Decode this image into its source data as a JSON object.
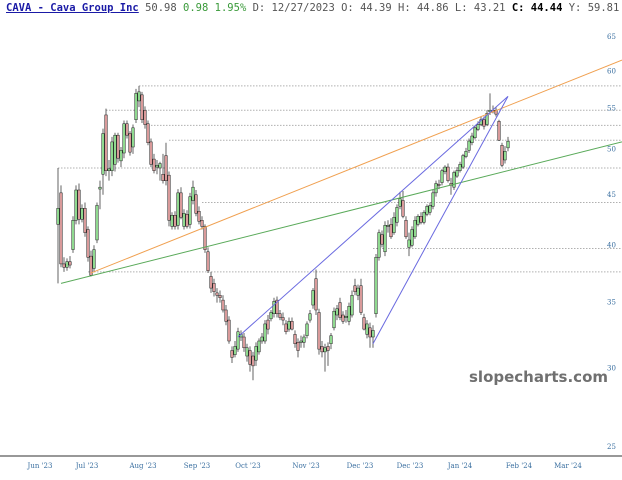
{
  "header": {
    "symbol_label": "CAVA - Cava Group Inc",
    "last": "50.98",
    "change": "0.98",
    "change_pct": "1.95%",
    "date": "D: 12/27/2023",
    "open": "O: 44.39",
    "high": "H: 44.86",
    "low": "L: 43.21",
    "close": "C: 44.44",
    "y_readout": "Y: 59.81"
  },
  "watermark": "slopecharts.com",
  "colors": {
    "up": "#8fd98f",
    "down": "#d99a9a",
    "outline": "#222222",
    "orange": "#f0a050",
    "green_line": "#5aaa5a",
    "blue_line": "#6a6ae0",
    "grid": "#b0b0b0",
    "tick": "#3a6fa0"
  },
  "chart_data": {
    "type": "candlestick",
    "title": "",
    "y_scale": "log",
    "ylim": [
      25,
      65
    ],
    "y_ticks": [
      "25",
      "30",
      "35",
      "40",
      "45",
      "50",
      "55",
      "60",
      "65"
    ],
    "x_ticks": [
      "Jun '23",
      "Jul '23",
      "Aug '23",
      "Sep '23",
      "Oct '23",
      "Nov '23",
      "Dec '23",
      "Dec '23",
      "Jan '24",
      "Feb '24",
      "Mar '24"
    ],
    "grid": false,
    "ohlc": [
      [
        42.0,
        47.9,
        36.6,
        43.6
      ],
      [
        45.2,
        46.0,
        38.0,
        38.3
      ],
      [
        38.3,
        38.9,
        37.6,
        38.0
      ],
      [
        38.0,
        38.8,
        37.7,
        38.5
      ],
      [
        38.5,
        39.0,
        37.9,
        38.2
      ],
      [
        39.6,
        42.8,
        39.3,
        42.4
      ],
      [
        42.4,
        46.0,
        42.0,
        45.5
      ],
      [
        45.5,
        46.2,
        42.0,
        42.5
      ],
      [
        42.5,
        44.0,
        42.2,
        43.6
      ],
      [
        43.6,
        44.2,
        40.8,
        41.2
      ],
      [
        41.5,
        41.8,
        38.5,
        38.9
      ],
      [
        39.0,
        39.5,
        37.2,
        37.3
      ],
      [
        37.9,
        40.0,
        37.6,
        39.6
      ],
      [
        40.5,
        44.2,
        40.2,
        43.9
      ],
      [
        45.6,
        46.5,
        43.5,
        45.8
      ],
      [
        47.2,
        52.5,
        45.0,
        51.9
      ],
      [
        54.2,
        55.0,
        47.0,
        47.6
      ],
      [
        47.6,
        48.8,
        46.5,
        47.8
      ],
      [
        47.6,
        51.5,
        47.0,
        50.9
      ],
      [
        48.3,
        52.0,
        47.5,
        51.7
      ],
      [
        51.7,
        52.0,
        48.5,
        49.0
      ],
      [
        48.7,
        50.3,
        48.0,
        49.9
      ],
      [
        49.6,
        53.5,
        49.0,
        53.1
      ],
      [
        53.1,
        53.5,
        51.3,
        51.7
      ],
      [
        51.9,
        52.2,
        49.3,
        49.7
      ],
      [
        50.3,
        53.0,
        49.5,
        52.6
      ],
      [
        53.6,
        57.6,
        53.2,
        57.0
      ],
      [
        56.0,
        58.0,
        55.2,
        57.2
      ],
      [
        56.8,
        57.2,
        53.2,
        53.6
      ],
      [
        54.8,
        55.3,
        52.5,
        53.0
      ],
      [
        53.1,
        53.5,
        50.5,
        50.8
      ],
      [
        50.9,
        51.3,
        48.0,
        48.3
      ],
      [
        48.9,
        49.5,
        47.3,
        47.6
      ],
      [
        48.0,
        48.8,
        47.2,
        48.2
      ],
      [
        47.9,
        48.6,
        46.5,
        48.4
      ],
      [
        47.2,
        49.5,
        46.2,
        46.5
      ],
      [
        49.3,
        50.8,
        46.0,
        46.5
      ],
      [
        47.1,
        47.5,
        41.8,
        42.4
      ],
      [
        41.8,
        43.2,
        41.5,
        42.9
      ],
      [
        42.9,
        43.3,
        41.5,
        41.8
      ],
      [
        41.9,
        45.6,
        41.5,
        45.2
      ],
      [
        45.2,
        45.8,
        42.5,
        42.7
      ],
      [
        41.8,
        43.5,
        41.5,
        43.1
      ],
      [
        43.0,
        43.4,
        41.6,
        41.8
      ],
      [
        42.0,
        45.2,
        41.6,
        44.8
      ],
      [
        44.4,
        46.5,
        44.0,
        45.8
      ],
      [
        45.0,
        45.5,
        42.8,
        43.1
      ],
      [
        43.3,
        43.8,
        42.0,
        42.3
      ],
      [
        42.4,
        42.8,
        41.5,
        41.8
      ],
      [
        41.8,
        42.0,
        39.3,
        39.6
      ],
      [
        39.4,
        39.8,
        37.5,
        37.7
      ],
      [
        37.2,
        37.6,
        35.8,
        36.2
      ],
      [
        36.6,
        37.0,
        35.5,
        35.9
      ],
      [
        35.8,
        36.2,
        35.0,
        35.6
      ],
      [
        35.6,
        36.0,
        35.0,
        35.4
      ],
      [
        35.2,
        35.6,
        34.2,
        34.4
      ],
      [
        34.4,
        34.8,
        33.2,
        33.5
      ],
      [
        33.6,
        33.9,
        31.8,
        32.0
      ],
      [
        31.3,
        31.6,
        30.4,
        30.8
      ],
      [
        31.0,
        32.0,
        30.8,
        31.6
      ],
      [
        31.4,
        33.0,
        31.2,
        32.7
      ],
      [
        32.3,
        32.8,
        32.0,
        32.5
      ],
      [
        32.3,
        32.6,
        31.2,
        31.5
      ],
      [
        30.9,
        31.8,
        30.5,
        31.5
      ],
      [
        31.3,
        31.6,
        29.8,
        30.3
      ],
      [
        30.9,
        31.2,
        29.2,
        30.2
      ],
      [
        30.6,
        31.9,
        30.2,
        31.6
      ],
      [
        31.2,
        32.2,
        31.0,
        32.0
      ],
      [
        32.0,
        32.6,
        31.8,
        32.3
      ],
      [
        32.0,
        33.6,
        31.8,
        33.3
      ],
      [
        33.6,
        34.0,
        32.5,
        32.9
      ],
      [
        33.7,
        34.4,
        33.5,
        34.2
      ],
      [
        34.1,
        35.4,
        33.8,
        35.1
      ],
      [
        35.2,
        35.5,
        33.8,
        34.1
      ],
      [
        34.1,
        34.4,
        33.6,
        33.8
      ],
      [
        33.8,
        34.2,
        33.2,
        33.6
      ],
      [
        33.3,
        33.6,
        32.5,
        32.7
      ],
      [
        32.9,
        33.8,
        32.7,
        33.5
      ],
      [
        33.5,
        33.8,
        32.8,
        32.9
      ],
      [
        32.5,
        32.8,
        31.5,
        31.8
      ],
      [
        31.9,
        32.2,
        30.8,
        31.3
      ],
      [
        31.9,
        32.4,
        31.5,
        32.0
      ],
      [
        31.9,
        32.5,
        31.5,
        32.3
      ],
      [
        32.4,
        33.5,
        32.2,
        33.3
      ],
      [
        33.6,
        34.4,
        33.4,
        34.1
      ],
      [
        34.8,
        36.2,
        34.5,
        36.0
      ],
      [
        37.0,
        37.8,
        34.0,
        34.4
      ],
      [
        34.2,
        34.5,
        31.0,
        31.4
      ],
      [
        31.6,
        32.0,
        30.8,
        31.2
      ],
      [
        31.2,
        31.8,
        29.8,
        31.5
      ],
      [
        31.6,
        31.9,
        30.2,
        31.3
      ],
      [
        31.8,
        32.6,
        31.4,
        32.4
      ],
      [
        33.0,
        34.6,
        32.8,
        34.3
      ],
      [
        34.0,
        34.8,
        33.6,
        34.5
      ],
      [
        35.0,
        35.4,
        33.6,
        33.8
      ],
      [
        34.0,
        34.3,
        33.3,
        33.5
      ],
      [
        33.8,
        34.4,
        33.4,
        33.9
      ],
      [
        33.5,
        35.0,
        33.2,
        34.7
      ],
      [
        34.0,
        36.0,
        33.8,
        35.6
      ],
      [
        36.4,
        37.0,
        35.6,
        35.9
      ],
      [
        35.6,
        36.5,
        35.2,
        36.2
      ],
      [
        36.4,
        37.0,
        34.0,
        34.2
      ],
      [
        33.8,
        34.1,
        32.8,
        32.9
      ],
      [
        32.5,
        33.6,
        32.2,
        33.3
      ],
      [
        33.0,
        33.4,
        31.5,
        32.3
      ],
      [
        32.3,
        33.2,
        31.5,
        32.8
      ],
      [
        34.1,
        39.2,
        33.8,
        38.9
      ],
      [
        38.9,
        41.5,
        38.6,
        41.2
      ],
      [
        41.0,
        41.4,
        39.8,
        40.1
      ],
      [
        39.4,
        42.3,
        39.0,
        41.9
      ],
      [
        41.8,
        42.4,
        41.2,
        41.9
      ],
      [
        42.0,
        42.6,
        40.6,
        40.8
      ],
      [
        41.2,
        43.2,
        41.0,
        42.7
      ],
      [
        42.2,
        44.0,
        41.8,
        43.7
      ],
      [
        43.8,
        45.3,
        43.5,
        44.6
      ],
      [
        44.4,
        45.4,
        42.6,
        42.8
      ],
      [
        42.4,
        42.8,
        40.6,
        40.8
      ],
      [
        39.8,
        41.2,
        39.0,
        40.5
      ],
      [
        40.0,
        41.8,
        39.8,
        41.5
      ],
      [
        40.8,
        42.8,
        40.6,
        42.4
      ],
      [
        42.0,
        43.0,
        41.8,
        42.8
      ],
      [
        42.8,
        43.2,
        42.0,
        42.2
      ],
      [
        42.2,
        43.4,
        42.0,
        43.2
      ],
      [
        43.0,
        44.0,
        42.8,
        43.8
      ],
      [
        43.2,
        44.2,
        42.9,
        43.9
      ],
      [
        43.8,
        45.5,
        43.5,
        45.2
      ],
      [
        45.2,
        46.5,
        44.8,
        46.2
      ],
      [
        46.1,
        46.6,
        45.6,
        46.0
      ],
      [
        46.3,
        47.8,
        46.0,
        47.6
      ],
      [
        47.5,
        48.2,
        47.2,
        48.0
      ],
      [
        48.0,
        48.4,
        46.3,
        46.5
      ],
      [
        46.2,
        46.8,
        45.0,
        46.0
      ],
      [
        45.8,
        47.6,
        45.5,
        47.4
      ],
      [
        47.0,
        48.0,
        46.8,
        47.6
      ],
      [
        47.6,
        48.6,
        47.4,
        48.3
      ],
      [
        48.0,
        49.5,
        47.8,
        49.3
      ],
      [
        49.2,
        50.2,
        49.0,
        49.8
      ],
      [
        49.9,
        51.3,
        49.6,
        51.0
      ],
      [
        50.8,
        52.0,
        50.5,
        51.6
      ],
      [
        51.4,
        52.8,
        51.2,
        52.6
      ],
      [
        52.4,
        53.4,
        52.2,
        53.0
      ],
      [
        53.0,
        54.0,
        52.8,
        53.6
      ],
      [
        53.6,
        54.0,
        52.4,
        52.8
      ],
      [
        53.0,
        54.8,
        52.8,
        54.4
      ],
      [
        54.6,
        57.0,
        54.2,
        54.8
      ],
      [
        54.8,
        55.4,
        54.4,
        54.6
      ],
      [
        54.8,
        55.2,
        54.0,
        54.3
      ],
      [
        53.4,
        53.6,
        51.0,
        51.1
      ],
      [
        50.5,
        50.8,
        48.0,
        48.2
      ],
      [
        48.8,
        50.4,
        48.4,
        49.8
      ],
      [
        50.2,
        51.5,
        49.8,
        50.98
      ]
    ],
    "trendlines": [
      {
        "color": "orange",
        "from": [
          11,
          37.5
        ],
        "to": [
          188,
          61.6
        ]
      },
      {
        "color": "green",
        "from": [
          1,
          36.6
        ],
        "to": [
          188,
          50.9
        ]
      },
      {
        "color": "blue",
        "from": [
          60,
          32.3
        ],
        "to": [
          150,
          56.6
        ]
      },
      {
        "color": "blue",
        "from": [
          105,
          31.8
        ],
        "to": [
          150,
          56.6
        ]
      }
    ],
    "levels": [
      {
        "price": 58.0,
        "from": 27
      },
      {
        "price": 54.8,
        "from": 16
      },
      {
        "price": 52.9,
        "from": 30
      },
      {
        "price": 51.1,
        "from": 37
      },
      {
        "price": 47.9,
        "from": 0
      },
      {
        "price": 44.2,
        "from": 48
      },
      {
        "price": 39.7,
        "from": 105
      },
      {
        "price": 37.6,
        "from": 10
      }
    ]
  }
}
